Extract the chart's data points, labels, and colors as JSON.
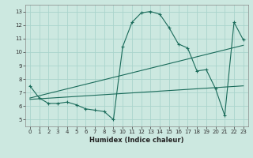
{
  "xlabel": "Humidex (Indice chaleur)",
  "background_color": "#cce8e0",
  "grid_color": "#aad4cc",
  "line_color": "#1a6b5a",
  "xlim": [
    -0.5,
    23.5
  ],
  "ylim": [
    4.5,
    13.5
  ],
  "xticks": [
    0,
    1,
    2,
    3,
    4,
    5,
    6,
    7,
    8,
    9,
    10,
    11,
    12,
    13,
    14,
    15,
    16,
    17,
    18,
    19,
    20,
    21,
    22,
    23
  ],
  "yticks": [
    5,
    6,
    7,
    8,
    9,
    10,
    11,
    12,
    13
  ],
  "line1_x": [
    0,
    1,
    2,
    3,
    4,
    5,
    6,
    7,
    8,
    9,
    10,
    11,
    12,
    13,
    14,
    15,
    16,
    17,
    18,
    19,
    20,
    21,
    22,
    23
  ],
  "line1_y": [
    7.5,
    6.6,
    6.2,
    6.2,
    6.3,
    6.1,
    5.8,
    5.7,
    5.6,
    5.0,
    10.4,
    12.2,
    12.9,
    13.0,
    12.8,
    11.8,
    10.6,
    10.3,
    8.6,
    8.7,
    7.3,
    5.3,
    12.2,
    10.9
  ],
  "line2_x": [
    0,
    23
  ],
  "line2_y": [
    6.6,
    10.5
  ],
  "line3_x": [
    0,
    23
  ],
  "line3_y": [
    6.5,
    7.5
  ],
  "figsize": [
    3.2,
    2.0
  ],
  "dpi": 100
}
